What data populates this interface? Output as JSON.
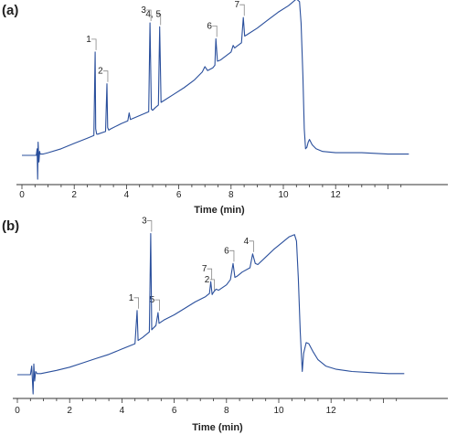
{
  "chart_data": [
    {
      "type": "line",
      "panel_label": "(a)",
      "xlabel": "Time (min)",
      "xlim": [
        -0.4,
        14.8
      ],
      "x_ticks": [
        0,
        2,
        4,
        6,
        8,
        10,
        12
      ],
      "color": "#2a4f9c",
      "series": [
        {
          "x": [
            0,
            0.55,
            0.58,
            0.6,
            0.62,
            0.65,
            0.68,
            0.7,
            0.8,
            1.0,
            1.5,
            2.0,
            2.5,
            2.75,
            2.8,
            2.82,
            2.86,
            2.9,
            3.2,
            3.25,
            3.28,
            3.32,
            3.4,
            3.8,
            4.05,
            4.1,
            4.15,
            4.5,
            4.85,
            4.9,
            4.95,
            5.0,
            5.1,
            5.22,
            5.27,
            5.32,
            5.4,
            5.8,
            6.2,
            6.6,
            6.9,
            7.0,
            7.1,
            7.3,
            7.38,
            7.42,
            7.48,
            7.6,
            8.0,
            8.08,
            8.14,
            8.2,
            8.4,
            8.47,
            8.52,
            8.6,
            9.0,
            9.4,
            9.8,
            10.2,
            10.5,
            10.62,
            10.68,
            10.75,
            10.8,
            10.85,
            10.9,
            10.95,
            11.0,
            11.1,
            11.25,
            11.5,
            12.0,
            13.0,
            14.0,
            14.8
          ],
          "y": [
            0,
            0,
            5,
            -18,
            10,
            -5,
            3,
            1,
            1,
            2,
            5,
            9,
            13,
            15,
            78,
            20,
            16,
            16,
            18,
            54,
            21,
            19,
            20,
            24,
            26,
            32,
            27,
            30,
            33,
            100,
            35,
            34,
            36,
            38,
            97,
            40,
            41,
            46,
            51,
            57,
            63,
            67,
            64,
            66,
            68,
            88,
            71,
            72,
            78,
            83,
            81,
            82,
            85,
            104,
            90,
            91,
            96,
            102,
            108,
            113,
            118,
            116,
            100,
            60,
            20,
            5,
            6,
            10,
            12,
            8,
            5,
            3,
            2,
            2,
            1,
            1
          ]
        }
      ],
      "peaks": [
        {
          "label": "1",
          "x": 2.8,
          "y": 78
        },
        {
          "label": "2",
          "x": 3.25,
          "y": 54
        },
        {
          "label": "3",
          "x": 4.9,
          "y": 100
        },
        {
          "label": "4, 5",
          "x": 5.27,
          "y": 97
        },
        {
          "label": "6",
          "x": 7.42,
          "y": 88
        },
        {
          "label": "7",
          "x": 8.47,
          "y": 104
        }
      ]
    },
    {
      "type": "line",
      "panel_label": "(b)",
      "xlabel": "Time (min)",
      "xlim": [
        -0.4,
        14.8
      ],
      "x_ticks": [
        0,
        2,
        4,
        6,
        8,
        10,
        12
      ],
      "color": "#2a4f9c",
      "series": [
        {
          "x": [
            0,
            0.5,
            0.55,
            0.6,
            0.63,
            0.66,
            0.7,
            0.75,
            0.9,
            1.5,
            2.0,
            2.5,
            3.0,
            3.5,
            4.0,
            4.5,
            4.58,
            4.62,
            4.68,
            4.8,
            5.05,
            5.1,
            5.14,
            5.18,
            5.3,
            5.38,
            5.42,
            5.48,
            5.6,
            6.0,
            6.4,
            6.8,
            7.2,
            7.35,
            7.4,
            7.45,
            7.5,
            7.6,
            7.7,
            8.0,
            8.15,
            8.25,
            8.32,
            8.4,
            8.6,
            8.9,
            9.0,
            9.1,
            9.2,
            9.5,
            9.8,
            10.1,
            10.4,
            10.6,
            10.68,
            10.75,
            10.82,
            10.9,
            10.95,
            11.05,
            11.15,
            11.3,
            11.5,
            11.8,
            12.2,
            12.8,
            13.5,
            14.2,
            14.8
          ],
          "y": [
            0,
            0,
            8,
            -18,
            10,
            -6,
            3,
            1,
            1,
            4,
            7,
            11,
            15,
            19,
            24,
            29,
            60,
            32,
            33,
            35,
            40,
            132,
            42,
            43,
            46,
            58,
            48,
            49,
            51,
            56,
            62,
            68,
            73,
            76,
            87,
            75,
            77,
            80,
            79,
            84,
            89,
            104,
            91,
            92,
            96,
            100,
            113,
            104,
            103,
            110,
            117,
            123,
            129,
            131,
            125,
            90,
            40,
            3,
            20,
            30,
            29,
            22,
            14,
            8,
            5,
            3,
            2,
            1,
            1
          ]
        }
      ],
      "peaks": [
        {
          "label": "1",
          "x": 4.6,
          "y": 60
        },
        {
          "label": "3",
          "x": 5.1,
          "y": 132
        },
        {
          "label": "5",
          "x": 5.4,
          "y": 58
        },
        {
          "label": "7",
          "x": 7.4,
          "y": 87
        },
        {
          "label": "2",
          "x": 7.5,
          "y": 77
        },
        {
          "label": "6",
          "x": 8.25,
          "y": 104
        },
        {
          "label": "4",
          "x": 9.0,
          "y": 113
        }
      ]
    }
  ]
}
